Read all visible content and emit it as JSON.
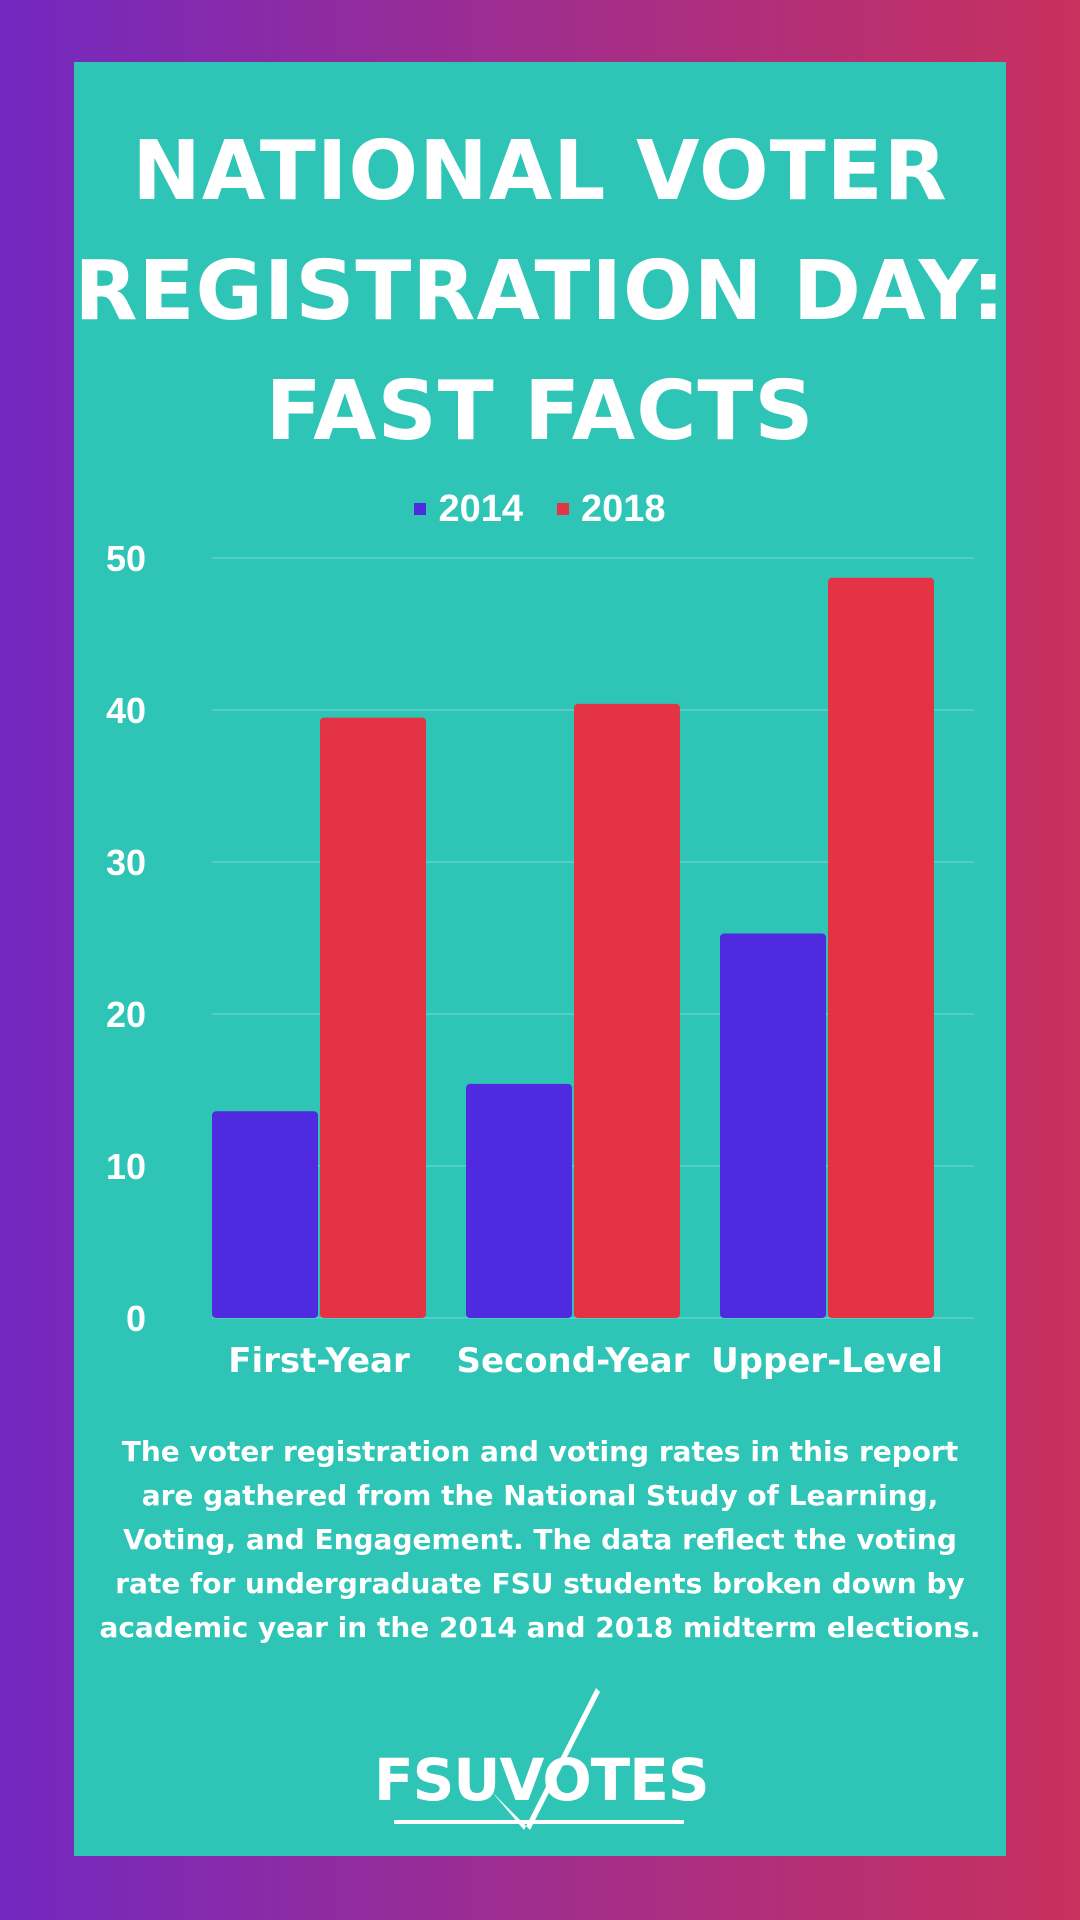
{
  "colors": {
    "series_2014": "#4f2adf",
    "series_2018": "#e43344",
    "panel": "#2ec4b6",
    "text": "#ffffff"
  },
  "header": {
    "title_lines": [
      "NATIONAL VOTER",
      "REGISTRATION DAY:",
      "FAST FACTS"
    ]
  },
  "chart_data": {
    "type": "bar",
    "categories": [
      "First-Year",
      "Second-Year",
      "Upper-Level"
    ],
    "series": [
      {
        "name": "2014",
        "values": [
          13.6,
          15.4,
          25.3
        ]
      },
      {
        "name": "2018",
        "values": [
          39.5,
          40.4,
          48.7
        ]
      }
    ],
    "title": "",
    "xlabel": "",
    "ylabel": "",
    "ylim": [
      0,
      50
    ],
    "yticks": [
      0,
      10,
      20,
      30,
      40,
      50
    ],
    "grid": true,
    "legend_position": "top-center"
  },
  "footnote": "The voter registration and voting rates in this report are gathered from the National Study of Learning, Voting, and Engagement. The data reflect the voting rate for undergraduate FSU students broken down by academic year in the 2014 and 2018 midterm elections.",
  "logo": {
    "text": "FSUVOTES",
    "icon": "checkmark-icon"
  }
}
